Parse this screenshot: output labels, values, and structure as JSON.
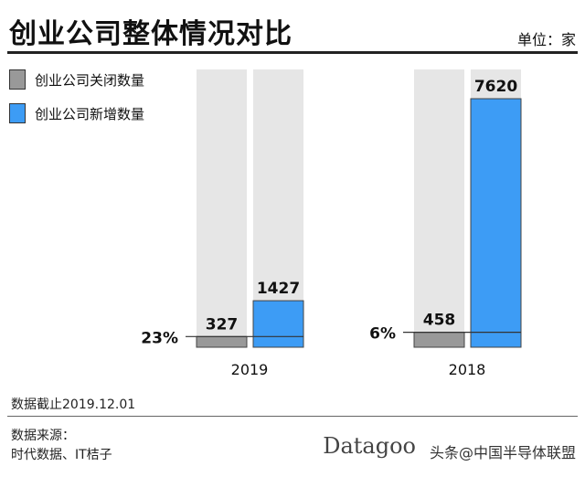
{
  "chart_data": {
    "type": "bar",
    "title": "创业公司整体情况对比",
    "unit_label": "单位：家",
    "categories": [
      "2019",
      "2018"
    ],
    "series": [
      {
        "name": "创业公司关闭数量",
        "color": "#999999",
        "values": [
          327,
          458
        ],
        "labels": [
          "327",
          "458"
        ]
      },
      {
        "name": "创业公司新增数量",
        "color": "#3d9cf5",
        "values": [
          1427,
          7620
        ],
        "labels": [
          "1427",
          "7620"
        ]
      }
    ],
    "ratio_labels": [
      "23%",
      "6%"
    ],
    "background_column_color": "#e6e6e6",
    "legend_position": "top-left",
    "grid": false
  },
  "footer": {
    "cutoff": "数据截止2019.12.01",
    "source_title": "数据来源：",
    "source": "时代数据、IT桔子"
  },
  "watermark": {
    "logo": "Datagoo",
    "text": "头条@中国半导体联盟"
  }
}
